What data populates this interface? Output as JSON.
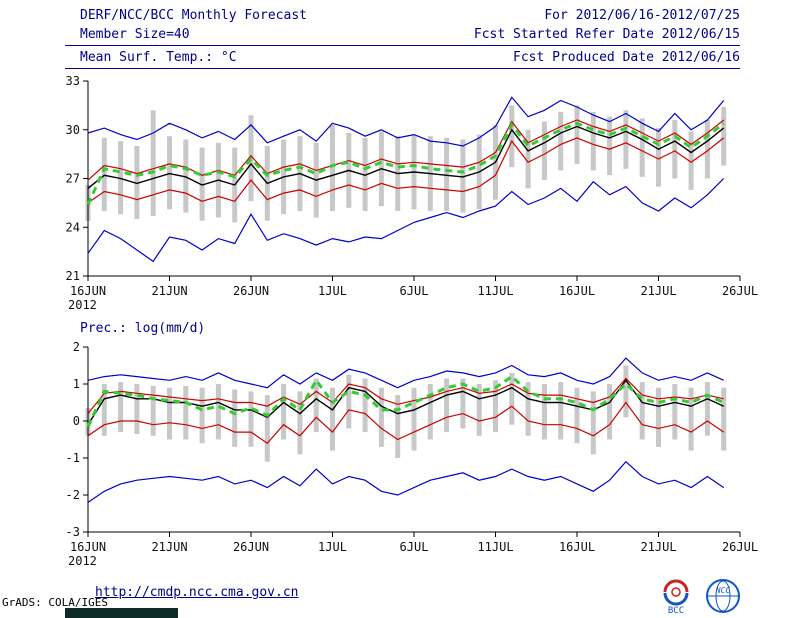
{
  "header": {
    "title": "DERF/NCC/BCC Monthly Forecast",
    "member_size": "Member Size=40",
    "temp_label": "Mean Surf. Temp.: °C",
    "for_range": "For 2012/06/16-2012/07/25",
    "fcst_started": "Fcst Started Refer Date 2012/06/15",
    "fcst_produced": "Fcst Produced Date 2012/06/16"
  },
  "footer": {
    "url": "http://cmdp.ncc.cma.gov.cn",
    "credit": "GrADS: COLA/IGES",
    "logo_bcc": "BCC",
    "logo_ncc": "NCC"
  },
  "colors": {
    "header_text": "#00008B",
    "axis": "#000000",
    "blue": "#0000cc",
    "red": "#cc0000",
    "black": "#000000",
    "green": "#33cc33",
    "bar": "#c8c8c8"
  },
  "chart_data": [
    {
      "type": "line",
      "name": "temperature-forecast",
      "title": "Mean Surf. Temp.: °C",
      "ylabel": "°C",
      "ylim": [
        21,
        33
      ],
      "yticks": [
        21,
        24,
        27,
        30,
        33
      ],
      "xlim": [
        0,
        40
      ],
      "x_tick_days": [
        0,
        5,
        10,
        15,
        20,
        25,
        30,
        35,
        40
      ],
      "x_tick_labels": [
        "16JUN",
        "21JUN",
        "26JUN",
        "1JUL",
        "6JUL",
        "11JUL",
        "16JUL",
        "21JUL",
        "26JUL"
      ],
      "x_year_label": "2012",
      "grid": false,
      "legend": "none",
      "bars": {
        "name": "member-spread-bar",
        "color": "#c8c8c8",
        "low": [
          24.4,
          25.0,
          24.8,
          24.5,
          24.7,
          25.1,
          24.9,
          24.4,
          24.6,
          24.3,
          25.6,
          24.4,
          24.8,
          25.0,
          24.6,
          25.0,
          25.2,
          25.0,
          25.3,
          25.0,
          25.1,
          25.0,
          25.0,
          24.9,
          25.1,
          25.7,
          27.7,
          26.4,
          26.9,
          27.5,
          27.9,
          27.5,
          27.2,
          27.6,
          27.1,
          26.5,
          27.0,
          26.3,
          27.0,
          27.8
        ],
        "high": [
          26.6,
          29.5,
          29.3,
          29.0,
          31.2,
          29.6,
          29.4,
          28.9,
          29.2,
          28.9,
          30.9,
          29.0,
          29.4,
          29.6,
          29.2,
          30.3,
          29.8,
          29.5,
          29.9,
          29.6,
          29.7,
          29.6,
          29.5,
          29.4,
          29.7,
          30.3,
          31.5,
          30.0,
          30.5,
          31.1,
          31.5,
          31.1,
          30.8,
          31.2,
          30.7,
          30.1,
          30.6,
          29.9,
          30.6,
          31.4
        ]
      },
      "series": [
        {
          "name": "envelope-max",
          "color": "#0000cc",
          "width": 1.2,
          "dash": "",
          "values": [
            29.8,
            30.1,
            29.7,
            29.4,
            29.8,
            30.4,
            30.0,
            29.5,
            29.9,
            29.4,
            30.3,
            29.2,
            29.6,
            30.0,
            29.3,
            30.4,
            30.1,
            29.6,
            30.0,
            29.5,
            29.7,
            29.3,
            29.2,
            29.0,
            29.5,
            30.2,
            32.0,
            30.8,
            31.2,
            31.8,
            31.4,
            30.9,
            30.5,
            31.0,
            30.4,
            29.9,
            31.0,
            30.0,
            30.6,
            31.8
          ]
        },
        {
          "name": "envelope-min",
          "color": "#0000cc",
          "width": 1.2,
          "dash": "",
          "values": [
            22.4,
            23.8,
            23.3,
            22.6,
            21.9,
            23.4,
            23.2,
            22.6,
            23.3,
            23.0,
            24.8,
            23.2,
            23.6,
            23.3,
            22.9,
            23.3,
            23.1,
            23.4,
            23.3,
            23.8,
            24.3,
            24.6,
            24.9,
            24.6,
            25.0,
            25.3,
            26.2,
            25.4,
            25.8,
            26.4,
            25.6,
            26.8,
            26.0,
            26.5,
            25.5,
            25.0,
            25.8,
            25.2,
            26.0,
            27.0
          ]
        },
        {
          "name": "spread-upper",
          "color": "#cc0000",
          "width": 1.2,
          "dash": "",
          "values": [
            26.9,
            27.8,
            27.6,
            27.3,
            27.6,
            27.9,
            27.7,
            27.2,
            27.5,
            27.2,
            28.4,
            27.3,
            27.7,
            27.9,
            27.5,
            27.8,
            28.1,
            27.8,
            28.2,
            27.9,
            28.0,
            27.9,
            27.8,
            27.7,
            28.0,
            28.6,
            30.5,
            29.2,
            29.7,
            30.2,
            30.6,
            30.2,
            29.9,
            30.3,
            29.8,
            29.3,
            29.8,
            29.1,
            29.8,
            30.6
          ]
        },
        {
          "name": "spread-lower",
          "color": "#cc0000",
          "width": 1.2,
          "dash": "",
          "values": [
            25.5,
            26.2,
            26.0,
            25.7,
            26.0,
            26.3,
            26.1,
            25.6,
            25.9,
            25.6,
            26.9,
            25.7,
            26.1,
            26.3,
            25.9,
            26.3,
            26.6,
            26.3,
            26.7,
            26.4,
            26.5,
            26.4,
            26.3,
            26.2,
            26.5,
            27.2,
            29.3,
            28.0,
            28.5,
            29.1,
            29.5,
            29.1,
            28.8,
            29.2,
            28.7,
            28.2,
            28.7,
            28.0,
            28.7,
            29.5
          ]
        },
        {
          "name": "ensemble-mean",
          "color": "#000000",
          "width": 1.4,
          "dash": "",
          "values": [
            26.4,
            27.2,
            27.0,
            26.7,
            27.0,
            27.3,
            27.1,
            26.6,
            26.9,
            26.6,
            27.9,
            26.7,
            27.1,
            27.3,
            26.9,
            27.2,
            27.5,
            27.2,
            27.6,
            27.3,
            27.4,
            27.3,
            27.2,
            27.1,
            27.4,
            28.0,
            30.0,
            28.7,
            29.2,
            29.8,
            30.2,
            29.8,
            29.5,
            29.9,
            29.4,
            28.8,
            29.3,
            28.6,
            29.3,
            30.1
          ]
        },
        {
          "name": "forecast-highlight",
          "color": "#33cc33",
          "width": 3,
          "dash": "7 5",
          "values": [
            25.4,
            27.6,
            27.4,
            27.2,
            27.4,
            27.8,
            27.6,
            27.2,
            27.4,
            27.1,
            28.2,
            27.2,
            27.5,
            27.7,
            27.3,
            27.8,
            28.0,
            27.6,
            28.0,
            27.7,
            27.8,
            27.6,
            27.5,
            27.4,
            27.8,
            28.4,
            30.3,
            29.0,
            29.5,
            30.0,
            30.4,
            30.0,
            29.7,
            30.1,
            29.6,
            29.1,
            29.6,
            28.9,
            29.6,
            30.4
          ]
        }
      ]
    },
    {
      "type": "line",
      "name": "precipitation-forecast",
      "title": "Prec.: log(mm/d)",
      "ylabel": "log(mm/d)",
      "ylim": [
        -3,
        2
      ],
      "yticks": [
        -3,
        -2,
        -1,
        0,
        1,
        2
      ],
      "xlim": [
        0,
        40
      ],
      "x_tick_days": [
        0,
        5,
        10,
        15,
        20,
        25,
        30,
        35,
        40
      ],
      "x_tick_labels": [
        "16JUN",
        "21JUN",
        "26JUN",
        "1JUL",
        "6JUL",
        "11JUL",
        "16JUL",
        "21JUL",
        "26JUL"
      ],
      "x_year_label": "2012",
      "grid": false,
      "legend": "none",
      "bars": {
        "name": "member-spread-bar",
        "color": "#c8c8c8",
        "low": [
          -0.4,
          -0.4,
          -0.3,
          -0.35,
          -0.4,
          -0.5,
          -0.5,
          -0.6,
          -0.5,
          -0.7,
          -0.7,
          -1.1,
          -0.5,
          -0.9,
          -0.3,
          -0.8,
          -0.2,
          -0.3,
          -0.7,
          -1.0,
          -0.8,
          -0.5,
          -0.3,
          -0.2,
          -0.4,
          -0.3,
          -0.1,
          -0.4,
          -0.5,
          -0.5,
          -0.6,
          -0.9,
          -0.5,
          0.1,
          -0.5,
          -0.7,
          -0.5,
          -0.8,
          -0.4,
          -0.8
        ],
        "high": [
          0.35,
          1.0,
          1.05,
          1.0,
          0.95,
          0.9,
          0.95,
          0.9,
          1.0,
          0.85,
          0.8,
          0.7,
          1.0,
          0.8,
          1.15,
          0.9,
          1.25,
          1.15,
          0.9,
          0.7,
          0.9,
          1.0,
          1.15,
          1.15,
          1.0,
          1.1,
          1.3,
          1.05,
          1.0,
          1.05,
          0.9,
          0.8,
          1.0,
          1.5,
          1.05,
          0.9,
          1.0,
          0.9,
          1.05,
          0.9
        ]
      },
      "series": [
        {
          "name": "envelope-max",
          "color": "#0000cc",
          "width": 1.2,
          "dash": "",
          "values": [
            1.1,
            1.2,
            1.25,
            1.2,
            1.15,
            1.1,
            1.2,
            1.1,
            1.3,
            1.1,
            1.0,
            0.9,
            1.25,
            1.0,
            1.3,
            1.1,
            1.4,
            1.3,
            1.1,
            0.9,
            1.1,
            1.2,
            1.35,
            1.3,
            1.2,
            1.3,
            1.5,
            1.25,
            1.2,
            1.3,
            1.1,
            1.0,
            1.2,
            1.7,
            1.3,
            1.1,
            1.2,
            1.1,
            1.3,
            1.1
          ]
        },
        {
          "name": "envelope-min",
          "color": "#0000cc",
          "width": 1.2,
          "dash": "",
          "values": [
            -2.2,
            -1.9,
            -1.7,
            -1.6,
            -1.55,
            -1.5,
            -1.55,
            -1.6,
            -1.5,
            -1.7,
            -1.6,
            -1.8,
            -1.5,
            -1.75,
            -1.3,
            -1.7,
            -1.5,
            -1.6,
            -1.9,
            -2.0,
            -1.8,
            -1.6,
            -1.5,
            -1.4,
            -1.6,
            -1.5,
            -1.3,
            -1.5,
            -1.6,
            -1.5,
            -1.7,
            -1.9,
            -1.6,
            -1.1,
            -1.5,
            -1.7,
            -1.6,
            -1.8,
            -1.5,
            -1.8
          ]
        },
        {
          "name": "spread-upper",
          "color": "#cc0000",
          "width": 1.2,
          "dash": "",
          "values": [
            0.2,
            0.75,
            0.8,
            0.75,
            0.7,
            0.65,
            0.6,
            0.55,
            0.6,
            0.5,
            0.5,
            0.4,
            0.65,
            0.45,
            0.8,
            0.5,
            1.0,
            0.9,
            0.6,
            0.45,
            0.55,
            0.65,
            0.8,
            0.9,
            0.75,
            0.8,
            1.0,
            0.75,
            0.7,
            0.7,
            0.6,
            0.5,
            0.65,
            1.15,
            0.7,
            0.6,
            0.65,
            0.6,
            0.7,
            0.6
          ]
        },
        {
          "name": "spread-lower",
          "color": "#cc0000",
          "width": 1.2,
          "dash": "",
          "values": [
            -0.4,
            -0.1,
            0.0,
            0.0,
            -0.1,
            -0.05,
            -0.1,
            -0.2,
            -0.1,
            -0.3,
            -0.3,
            -0.6,
            -0.1,
            -0.4,
            0.1,
            -0.3,
            0.3,
            0.2,
            -0.2,
            -0.5,
            -0.3,
            -0.1,
            0.1,
            0.2,
            0.0,
            0.1,
            0.4,
            0.0,
            -0.1,
            -0.1,
            -0.2,
            -0.4,
            -0.1,
            0.5,
            -0.1,
            -0.2,
            -0.1,
            -0.3,
            0.0,
            -0.3
          ]
        },
        {
          "name": "ensemble-mean",
          "color": "#000000",
          "width": 1.4,
          "dash": "",
          "values": [
            -0.1,
            0.6,
            0.7,
            0.6,
            0.6,
            0.5,
            0.5,
            0.4,
            0.5,
            0.3,
            0.3,
            0.1,
            0.5,
            0.2,
            0.6,
            0.3,
            0.9,
            0.8,
            0.4,
            0.2,
            0.3,
            0.5,
            0.7,
            0.8,
            0.6,
            0.7,
            0.9,
            0.6,
            0.5,
            0.5,
            0.4,
            0.3,
            0.5,
            1.1,
            0.5,
            0.4,
            0.5,
            0.4,
            0.6,
            0.4
          ]
        },
        {
          "name": "forecast-highlight",
          "color": "#33cc33",
          "width": 3,
          "dash": "7 5",
          "values": [
            -0.15,
            0.8,
            0.75,
            0.7,
            0.6,
            0.55,
            0.5,
            0.3,
            0.4,
            0.2,
            0.35,
            0.15,
            0.6,
            0.3,
            1.1,
            0.5,
            0.8,
            0.7,
            0.3,
            0.3,
            0.5,
            0.7,
            0.9,
            1.0,
            0.8,
            0.9,
            1.2,
            0.8,
            0.6,
            0.6,
            0.5,
            0.3,
            0.6,
            1.0,
            0.6,
            0.5,
            0.6,
            0.5,
            0.7,
            0.5
          ]
        }
      ]
    }
  ]
}
